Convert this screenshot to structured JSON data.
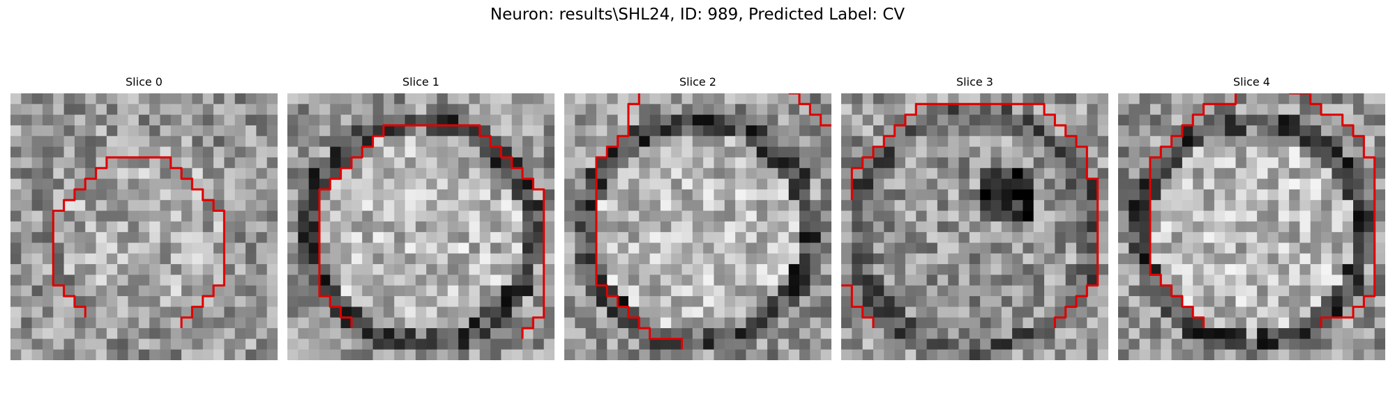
{
  "title": "Neuron: results\\SHL24, ID: 989, Predicted Label: CV",
  "colors": {
    "contour": "#e00000"
  },
  "slices": [
    {
      "label": "Slice 0",
      "seed": 11,
      "style": "faint",
      "contour": [
        [
          7,
          21
        ],
        [
          7,
          20
        ],
        [
          6,
          20
        ],
        [
          6,
          19
        ],
        [
          5,
          19
        ],
        [
          5,
          18
        ],
        [
          4,
          18
        ],
        [
          4,
          11
        ],
        [
          5,
          11
        ],
        [
          5,
          10
        ],
        [
          6,
          10
        ],
        [
          6,
          9
        ],
        [
          7,
          9
        ],
        [
          7,
          8
        ],
        [
          8,
          8
        ],
        [
          8,
          7
        ],
        [
          9,
          7
        ],
        [
          9,
          6
        ],
        [
          15,
          6
        ],
        [
          15,
          7
        ],
        [
          16,
          7
        ],
        [
          16,
          8
        ],
        [
          17,
          8
        ],
        [
          17,
          9
        ],
        [
          18,
          9
        ],
        [
          18,
          10
        ],
        [
          19,
          10
        ],
        [
          19,
          11
        ],
        [
          20,
          11
        ],
        [
          20,
          18
        ],
        [
          19,
          18
        ],
        [
          19,
          19
        ],
        [
          18,
          19
        ],
        [
          18,
          20
        ],
        [
          17,
          20
        ],
        [
          17,
          21
        ],
        [
          16,
          21
        ],
        [
          16,
          22
        ]
      ],
      "contour2": []
    },
    {
      "label": "Slice 1",
      "seed": 23,
      "style": "ring",
      "contour": [
        [
          6,
          22
        ],
        [
          6,
          21
        ],
        [
          5,
          21
        ],
        [
          5,
          20
        ],
        [
          4,
          20
        ],
        [
          4,
          19
        ],
        [
          3,
          19
        ],
        [
          3,
          9
        ],
        [
          4,
          9
        ],
        [
          4,
          8
        ],
        [
          5,
          8
        ],
        [
          5,
          7
        ],
        [
          6,
          7
        ],
        [
          6,
          6
        ],
        [
          7,
          6
        ],
        [
          7,
          5
        ],
        [
          8,
          5
        ],
        [
          8,
          4
        ],
        [
          9,
          4
        ],
        [
          9,
          3
        ],
        [
          18,
          3
        ],
        [
          18,
          4
        ],
        [
          19,
          4
        ],
        [
          19,
          5
        ],
        [
          20,
          5
        ],
        [
          20,
          6
        ],
        [
          21,
          6
        ],
        [
          21,
          7
        ],
        [
          22,
          7
        ],
        [
          22,
          8
        ],
        [
          23,
          8
        ],
        [
          23,
          9
        ],
        [
          24,
          9
        ],
        [
          24,
          21
        ],
        [
          23,
          21
        ],
        [
          23,
          22
        ],
        [
          22,
          22
        ],
        [
          22,
          23
        ]
      ],
      "contour2": []
    },
    {
      "label": "Slice 2",
      "seed": 37,
      "style": "ring",
      "contour": [
        [
          11,
          24
        ],
        [
          11,
          23
        ],
        [
          8,
          23
        ],
        [
          8,
          22
        ],
        [
          7,
          22
        ],
        [
          7,
          21
        ],
        [
          6,
          21
        ],
        [
          6,
          20
        ],
        [
          5,
          20
        ],
        [
          5,
          19
        ],
        [
          4,
          19
        ],
        [
          4,
          18
        ],
        [
          3,
          18
        ],
        [
          3,
          6
        ],
        [
          4,
          6
        ],
        [
          4,
          5
        ],
        [
          5,
          5
        ],
        [
          5,
          4
        ],
        [
          6,
          4
        ],
        [
          6,
          1
        ],
        [
          7,
          1
        ],
        [
          7,
          0
        ]
      ],
      "contour2": [
        [
          21,
          0
        ],
        [
          22,
          0
        ],
        [
          22,
          1
        ],
        [
          23,
          1
        ],
        [
          23,
          2
        ],
        [
          24,
          2
        ],
        [
          24,
          3
        ],
        [
          25,
          3
        ]
      ]
    },
    {
      "label": "Slice 3",
      "seed": 51,
      "style": "spot",
      "contour": [
        [
          1,
          10
        ],
        [
          1,
          7
        ],
        [
          2,
          7
        ],
        [
          2,
          6
        ],
        [
          3,
          6
        ],
        [
          3,
          5
        ],
        [
          4,
          5
        ],
        [
          4,
          4
        ],
        [
          5,
          4
        ],
        [
          5,
          3
        ],
        [
          6,
          3
        ],
        [
          6,
          2
        ],
        [
          7,
          2
        ],
        [
          7,
          1
        ],
        [
          19,
          1
        ],
        [
          19,
          2
        ],
        [
          20,
          2
        ],
        [
          20,
          3
        ],
        [
          21,
          3
        ],
        [
          21,
          4
        ],
        [
          22,
          4
        ],
        [
          22,
          5
        ],
        [
          23,
          5
        ],
        [
          23,
          8
        ],
        [
          24,
          8
        ],
        [
          24,
          18
        ],
        [
          23,
          18
        ],
        [
          23,
          19
        ],
        [
          22,
          19
        ],
        [
          22,
          20
        ],
        [
          21,
          20
        ],
        [
          21,
          21
        ],
        [
          20,
          21
        ],
        [
          20,
          22
        ]
      ],
      "contour2": [
        [
          0,
          18
        ],
        [
          1,
          18
        ],
        [
          1,
          20
        ],
        [
          2,
          20
        ],
        [
          2,
          21
        ],
        [
          3,
          21
        ],
        [
          3,
          22
        ]
      ]
    },
    {
      "label": "Slice 4",
      "seed": 67,
      "style": "ring",
      "contour": [
        [
          8,
          22
        ],
        [
          8,
          21
        ],
        [
          7,
          21
        ],
        [
          7,
          20
        ],
        [
          6,
          20
        ],
        [
          6,
          19
        ],
        [
          5,
          19
        ],
        [
          5,
          18
        ],
        [
          4,
          18
        ],
        [
          4,
          17
        ],
        [
          3,
          17
        ],
        [
          3,
          6
        ],
        [
          4,
          6
        ],
        [
          4,
          5
        ],
        [
          5,
          5
        ],
        [
          5,
          4
        ],
        [
          6,
          4
        ],
        [
          6,
          3
        ],
        [
          7,
          3
        ],
        [
          7,
          2
        ],
        [
          8,
          2
        ],
        [
          8,
          1
        ],
        [
          11,
          1
        ],
        [
          11,
          0
        ]
      ],
      "contour2": [
        [
          16,
          0
        ],
        [
          18,
          0
        ],
        [
          18,
          1
        ],
        [
          19,
          1
        ],
        [
          19,
          2
        ],
        [
          21,
          2
        ],
        [
          21,
          3
        ],
        [
          22,
          3
        ],
        [
          22,
          4
        ],
        [
          23,
          4
        ],
        [
          23,
          6
        ],
        [
          24,
          6
        ],
        [
          24,
          19
        ],
        [
          23,
          19
        ],
        [
          23,
          20
        ],
        [
          22,
          20
        ],
        [
          22,
          21
        ],
        [
          19,
          21
        ],
        [
          19,
          22
        ]
      ]
    }
  ]
}
